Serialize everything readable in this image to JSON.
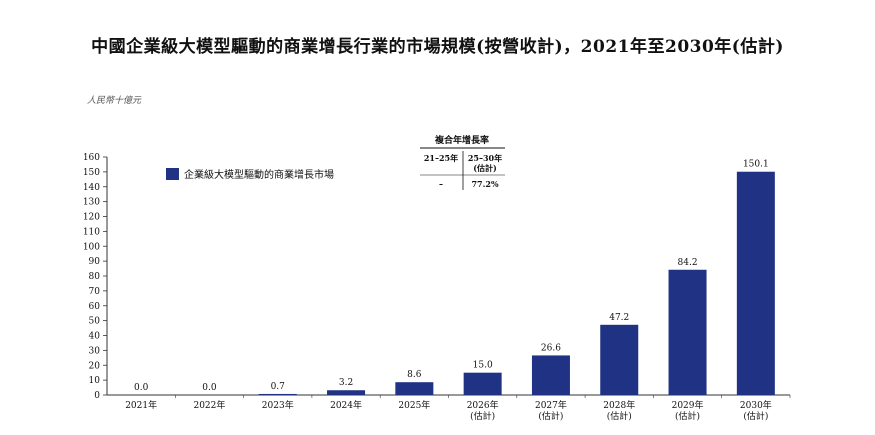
{
  "title": "中國企業級大模型驅動的商業增長行業的市場規模(按營收計)，2021年至2030年(估計)",
  "unit": "人民幣十億元",
  "colors": {
    "bar": "#1f3283",
    "axis": "#333333"
  },
  "cagr": {
    "title": "複合年增長率",
    "col1_header": "21–25年",
    "col2_header": "25–30年",
    "col2_sub": "(估計)",
    "col1_value": "–",
    "col2_value": "77.2%"
  },
  "chart_data": {
    "type": "bar",
    "categories": [
      "2021年",
      "2022年",
      "2023年",
      "2024年",
      "2025年",
      "2026年",
      "2027年",
      "2028年",
      "2029年",
      "2030年"
    ],
    "category_sublabels": [
      "",
      "",
      "",
      "",
      "",
      "(估計)",
      "(估計)",
      "(估計)",
      "(估計)",
      "(估計)"
    ],
    "series": [
      {
        "name": "企業級大模型驅動的商業增長市場",
        "values": [
          0.0,
          0.0,
          0.7,
          3.2,
          8.6,
          15.0,
          26.6,
          47.2,
          84.2,
          150.1
        ]
      }
    ],
    "value_labels": [
      "0.0",
      "0.0",
      "0.7",
      "3.2",
      "8.6",
      "15.0",
      "26.6",
      "47.2",
      "84.2",
      "150.1"
    ],
    "ylim": [
      0,
      160
    ],
    "yticks": [
      0,
      10,
      20,
      30,
      40,
      50,
      60,
      70,
      80,
      90,
      100,
      110,
      120,
      130,
      140,
      150,
      160
    ],
    "legend_position": "top-left",
    "grid": false
  }
}
